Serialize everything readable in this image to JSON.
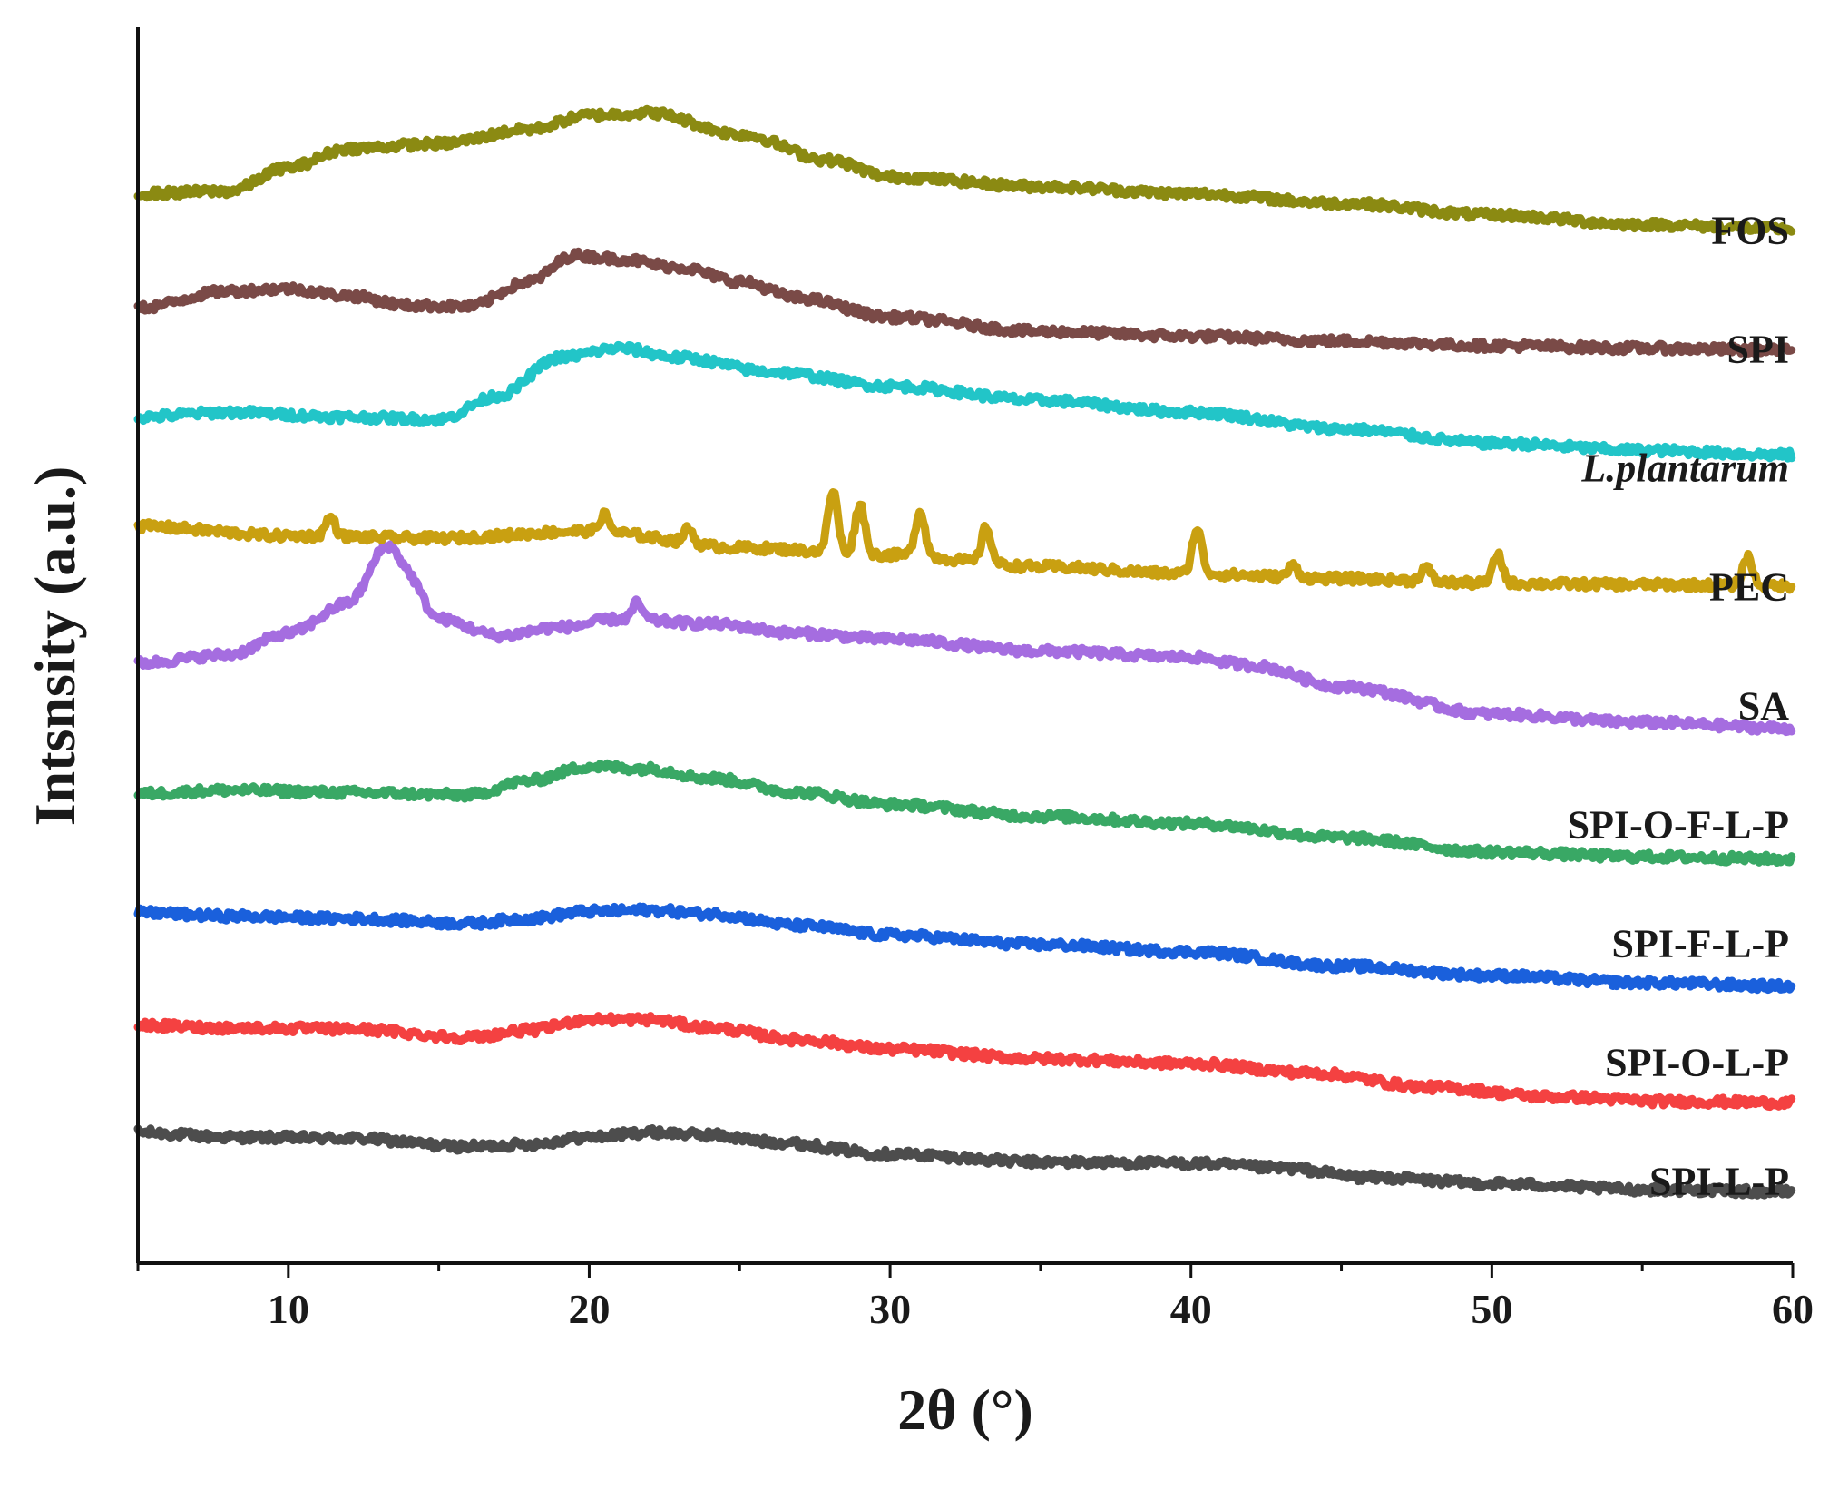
{
  "chart_data": {
    "type": "line",
    "title": "",
    "xlabel": "2θ (°)",
    "ylabel": "Intsnsity (a.u.)",
    "xlim": [
      5,
      60
    ],
    "xticks": [
      10,
      20,
      30,
      40,
      50,
      60
    ],
    "ylim": [
      0,
      10.4
    ],
    "grid": false,
    "legend": "inline-right",
    "series": [
      {
        "name": "SPI-L-P",
        "color": "#4d4d4d",
        "offset": 0.7,
        "italic": false,
        "points": [
          [
            5,
            1.1
          ],
          [
            8,
            1.06
          ],
          [
            12,
            1.05
          ],
          [
            16,
            0.98
          ],
          [
            18,
            1.0
          ],
          [
            20,
            1.06
          ],
          [
            22,
            1.1
          ],
          [
            24,
            1.08
          ],
          [
            26,
            1.02
          ],
          [
            30,
            0.92
          ],
          [
            35,
            0.85
          ],
          [
            40,
            0.84
          ],
          [
            43,
            0.8
          ],
          [
            46,
            0.72
          ],
          [
            50,
            0.67
          ],
          [
            55,
            0.62
          ],
          [
            60,
            0.6
          ]
        ],
        "peaks": []
      },
      {
        "name": "SPI-O-L-P",
        "color": "#f44141",
        "offset": 1.7,
        "italic": false,
        "points": [
          [
            5,
            2.0
          ],
          [
            8,
            1.98
          ],
          [
            12,
            1.97
          ],
          [
            16,
            1.9
          ],
          [
            18,
            1.96
          ],
          [
            20,
            2.05
          ],
          [
            22,
            2.05
          ],
          [
            24,
            1.98
          ],
          [
            27,
            1.88
          ],
          [
            30,
            1.8
          ],
          [
            35,
            1.72
          ],
          [
            40,
            1.68
          ],
          [
            44,
            1.6
          ],
          [
            48,
            1.48
          ],
          [
            52,
            1.4
          ],
          [
            56,
            1.36
          ],
          [
            60,
            1.35
          ]
        ],
        "peaks": []
      },
      {
        "name": "SPI-F-L-P",
        "color": "#1a60dc",
        "offset": 2.7,
        "italic": false,
        "points": [
          [
            5,
            2.95
          ],
          [
            8,
            2.92
          ],
          [
            12,
            2.9
          ],
          [
            16,
            2.86
          ],
          [
            18,
            2.9
          ],
          [
            20,
            2.96
          ],
          [
            22,
            2.97
          ],
          [
            24,
            2.94
          ],
          [
            27,
            2.84
          ],
          [
            30,
            2.76
          ],
          [
            35,
            2.68
          ],
          [
            40,
            2.62
          ],
          [
            45,
            2.5
          ],
          [
            50,
            2.42
          ],
          [
            55,
            2.36
          ],
          [
            60,
            2.33
          ]
        ],
        "peaks": []
      },
      {
        "name": "SPI-O-F-L-P",
        "color": "#39a865",
        "offset": 3.7,
        "italic": false,
        "points": [
          [
            5,
            3.95
          ],
          [
            8,
            3.98
          ],
          [
            12,
            3.96
          ],
          [
            16,
            3.94
          ],
          [
            18,
            4.06
          ],
          [
            20,
            4.18
          ],
          [
            22,
            4.16
          ],
          [
            24,
            4.08
          ],
          [
            27,
            3.96
          ],
          [
            30,
            3.86
          ],
          [
            35,
            3.76
          ],
          [
            40,
            3.7
          ],
          [
            45,
            3.58
          ],
          [
            50,
            3.46
          ],
          [
            55,
            3.42
          ],
          [
            60,
            3.4
          ]
        ],
        "peaks": []
      },
      {
        "name": "SA",
        "color": "#a56de0",
        "offset": 4.7,
        "italic": false,
        "points": [
          [
            5,
            5.05
          ],
          [
            8,
            5.12
          ],
          [
            10,
            5.3
          ],
          [
            12,
            5.55
          ],
          [
            13.2,
            5.8
          ],
          [
            14,
            5.68
          ],
          [
            15,
            5.42
          ],
          [
            17,
            5.28
          ],
          [
            19,
            5.35
          ],
          [
            21,
            5.42
          ],
          [
            24,
            5.38
          ],
          [
            27,
            5.3
          ],
          [
            30,
            5.25
          ],
          [
            35,
            5.15
          ],
          [
            40,
            5.1
          ],
          [
            42,
            5.03
          ],
          [
            45,
            4.85
          ],
          [
            50,
            4.62
          ],
          [
            55,
            4.55
          ],
          [
            60,
            4.5
          ]
        ],
        "peaks": [
          [
            13.4,
            0.25
          ],
          [
            21.6,
            0.14
          ]
        ]
      },
      {
        "name": "PEC",
        "color": "#c9a011",
        "offset": 5.7,
        "italic": false,
        "points": [
          [
            5,
            6.2
          ],
          [
            10,
            6.12
          ],
          [
            15,
            6.1
          ],
          [
            20,
            6.16
          ],
          [
            25,
            6.02
          ],
          [
            30,
            5.96
          ],
          [
            35,
            5.86
          ],
          [
            40,
            5.8
          ],
          [
            45,
            5.76
          ],
          [
            50,
            5.72
          ],
          [
            55,
            5.71
          ],
          [
            60,
            5.7
          ]
        ],
        "peaks": [
          [
            11.4,
            0.16
          ],
          [
            20.5,
            0.14
          ],
          [
            23.3,
            0.12
          ],
          [
            28.1,
            0.52
          ],
          [
            29.0,
            0.42
          ],
          [
            31.0,
            0.38
          ],
          [
            33.2,
            0.3
          ],
          [
            40.2,
            0.38
          ],
          [
            43.4,
            0.1
          ],
          [
            47.8,
            0.12
          ],
          [
            50.2,
            0.24
          ],
          [
            58.5,
            0.24
          ]
        ]
      },
      {
        "name": "L.plantarum",
        "color": "#22c5c8",
        "offset": 6.7,
        "italic": true,
        "points": [
          [
            5,
            7.12
          ],
          [
            8,
            7.16
          ],
          [
            12,
            7.12
          ],
          [
            15,
            7.1
          ],
          [
            17,
            7.3
          ],
          [
            19,
            7.62
          ],
          [
            21,
            7.7
          ],
          [
            23,
            7.62
          ],
          [
            26,
            7.5
          ],
          [
            30,
            7.38
          ],
          [
            35,
            7.26
          ],
          [
            40,
            7.16
          ],
          [
            45,
            7.02
          ],
          [
            50,
            6.9
          ],
          [
            55,
            6.84
          ],
          [
            60,
            6.8
          ]
        ],
        "peaks": []
      },
      {
        "name": "SPI",
        "color": "#7a4a47",
        "offset": 7.7,
        "italic": false,
        "points": [
          [
            5,
            8.04
          ],
          [
            8,
            8.18
          ],
          [
            10,
            8.2
          ],
          [
            12,
            8.14
          ],
          [
            14,
            8.06
          ],
          [
            16,
            8.05
          ],
          [
            18,
            8.26
          ],
          [
            19.5,
            8.48
          ],
          [
            21,
            8.45
          ],
          [
            23,
            8.38
          ],
          [
            25,
            8.26
          ],
          [
            27,
            8.12
          ],
          [
            30,
            7.96
          ],
          [
            35,
            7.84
          ],
          [
            40,
            7.8
          ],
          [
            45,
            7.76
          ],
          [
            50,
            7.72
          ],
          [
            55,
            7.7
          ],
          [
            60,
            7.68
          ]
        ],
        "peaks": []
      },
      {
        "name": "FOS",
        "color": "#8b8a12",
        "offset": 8.7,
        "italic": false,
        "points": [
          [
            5,
            9.0
          ],
          [
            8,
            9.02
          ],
          [
            10,
            9.22
          ],
          [
            12,
            9.38
          ],
          [
            15,
            9.42
          ],
          [
            18,
            9.54
          ],
          [
            20,
            9.66
          ],
          [
            22,
            9.68
          ],
          [
            25,
            9.5
          ],
          [
            28,
            9.28
          ],
          [
            30,
            9.14
          ],
          [
            35,
            9.06
          ],
          [
            40,
            9.0
          ],
          [
            45,
            8.92
          ],
          [
            50,
            8.82
          ],
          [
            55,
            8.74
          ],
          [
            60,
            8.7
          ]
        ],
        "peaks": []
      }
    ]
  }
}
